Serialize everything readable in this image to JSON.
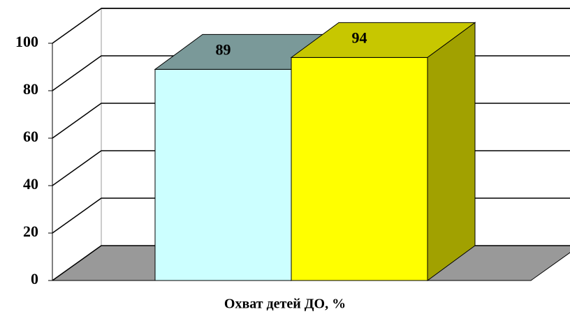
{
  "chart_data": {
    "type": "bar3d",
    "categories": [
      "Охват детей ДО, %"
    ],
    "series": [
      {
        "color": "#ccffff",
        "values": [
          89
        ]
      },
      {
        "color": "#ffff00",
        "values": [
          94
        ]
      }
    ],
    "ylim": [
      0,
      100
    ],
    "yticks": [
      0,
      20,
      40,
      60,
      80,
      100
    ],
    "grid": true
  }
}
